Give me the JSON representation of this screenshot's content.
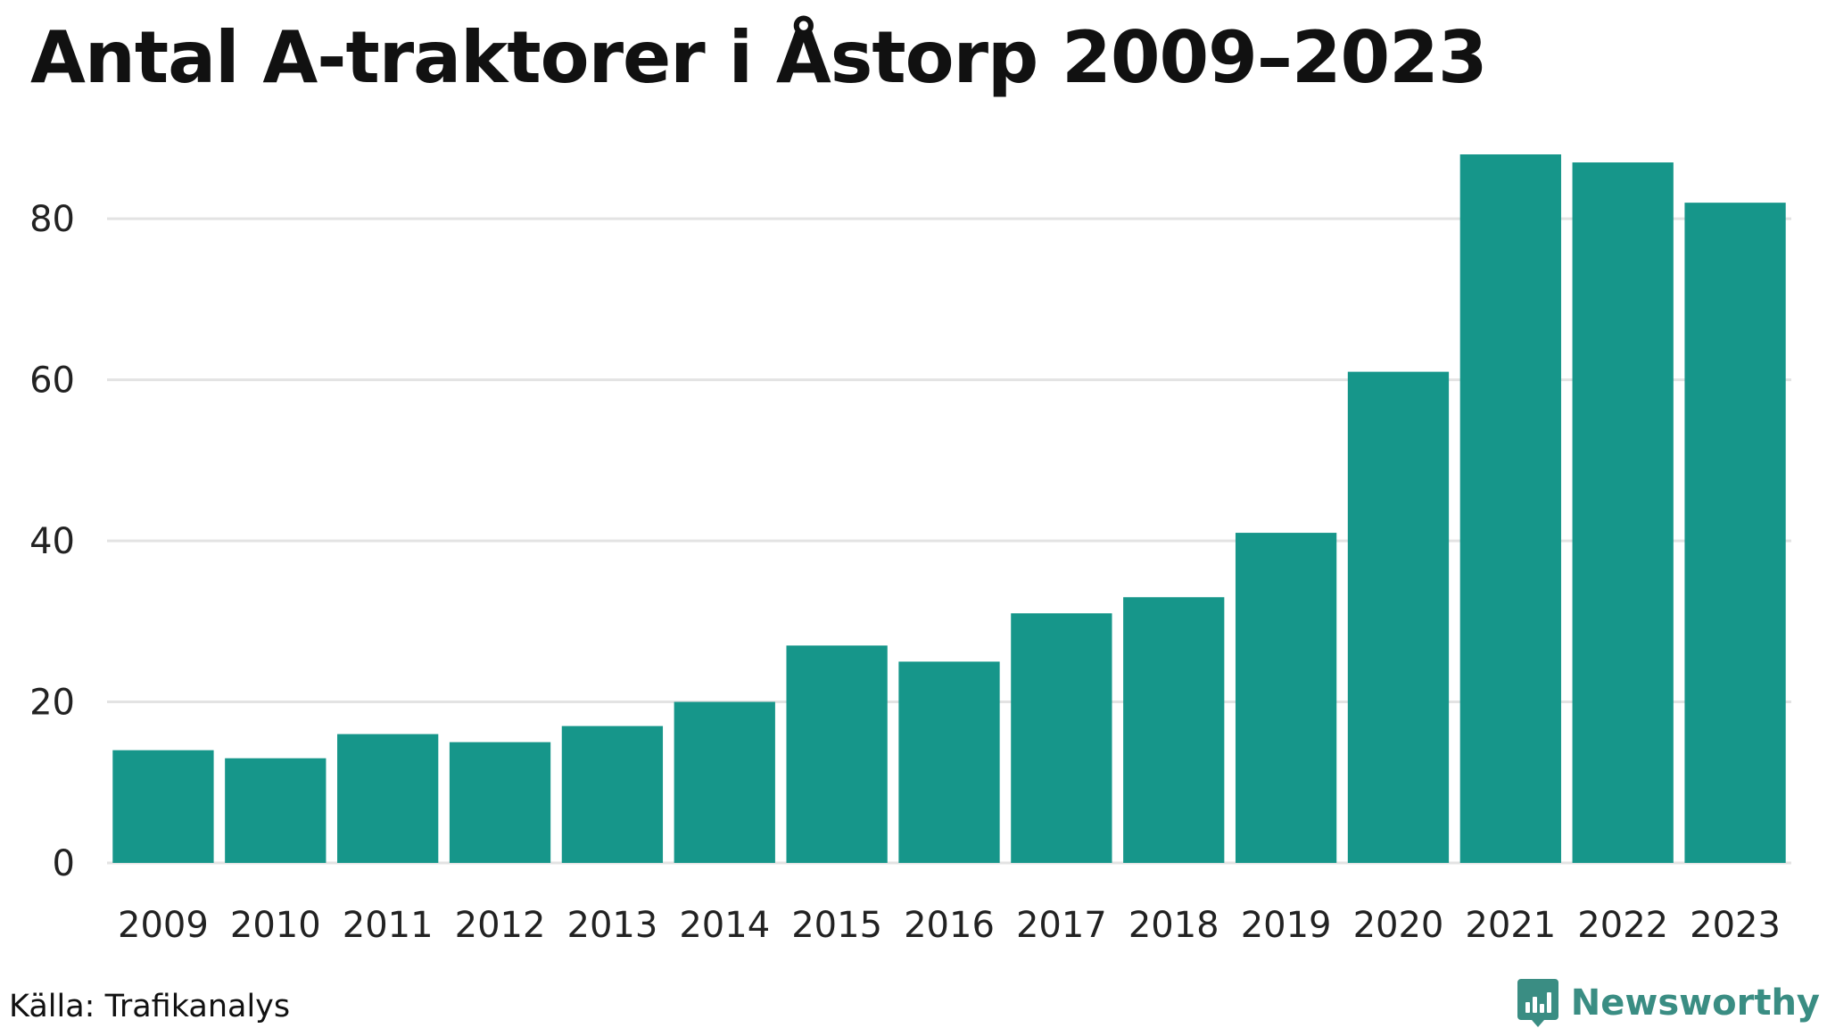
{
  "title": "Antal A-traktorer i Åstorp 2009–2023",
  "source": "Källa: Trafikanalys",
  "brand": {
    "name": "Newsworthy",
    "icon": "newsworthy-logo-icon"
  },
  "colors": {
    "bar": "#16968a",
    "grid": "#e3e3e3",
    "brand": "#3a8d83"
  },
  "chart_data": {
    "type": "bar",
    "title": "Antal A-traktorer i Åstorp 2009–2023",
    "xlabel": "",
    "ylabel": "",
    "categories": [
      "2009",
      "2010",
      "2011",
      "2012",
      "2013",
      "2014",
      "2015",
      "2016",
      "2017",
      "2018",
      "2019",
      "2020",
      "2021",
      "2022",
      "2023"
    ],
    "values": [
      14,
      13,
      16,
      15,
      17,
      20,
      27,
      25,
      31,
      33,
      41,
      61,
      88,
      87,
      82
    ],
    "ylim": [
      0,
      88
    ],
    "yticks": [
      0,
      20,
      40,
      60,
      80
    ],
    "grid": true,
    "legend": "none"
  }
}
